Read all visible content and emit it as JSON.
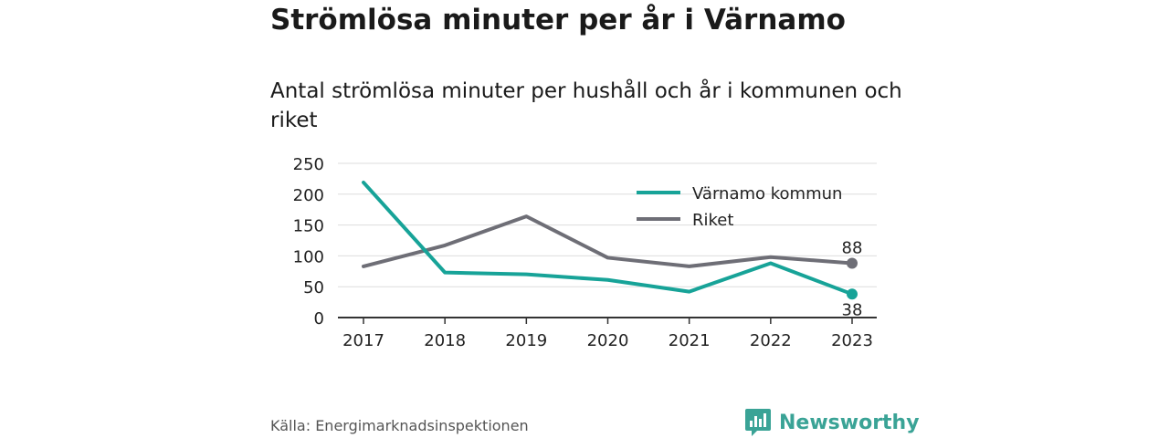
{
  "header": {
    "title": "Strömlösa minuter per år i Värnamo",
    "subtitle": "Antal strömlösa minuter per hushåll och år i kommunen och riket"
  },
  "footer": {
    "source": "Källa: Energimarknadsinspektionen",
    "brand": "Newsworthy",
    "brand_icon": "bar-chart-logo-icon"
  },
  "colors": {
    "varnamo": "#17a398",
    "riket": "#6e6e76",
    "grid": "#dddddd",
    "axis": "#333333",
    "brand": "#3aa396"
  },
  "chart_data": {
    "type": "line",
    "categories": [
      "2017",
      "2018",
      "2019",
      "2020",
      "2021",
      "2022",
      "2023"
    ],
    "series": [
      {
        "name": "Värnamo kommun",
        "values": [
          219,
          73,
          70,
          61,
          42,
          88,
          38
        ]
      },
      {
        "name": "Riket",
        "values": [
          83,
          117,
          164,
          97,
          83,
          98,
          88
        ]
      }
    ],
    "ylim": [
      0,
      250
    ],
    "yticks": [
      0,
      50,
      100,
      150,
      200,
      250
    ],
    "grid": true,
    "legend": "top-right",
    "end_labels": [
      "38",
      "88"
    ]
  }
}
